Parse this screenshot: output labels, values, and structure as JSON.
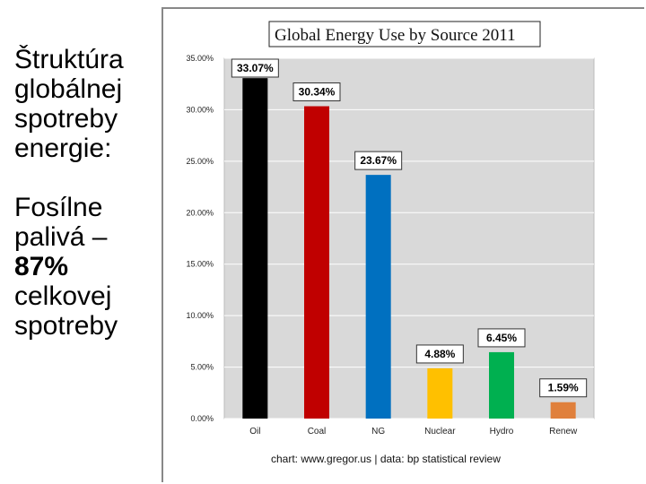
{
  "slide": {
    "lines_1": [
      "Štruktúra",
      "globálnej",
      "spotreby",
      "energie:"
    ],
    "lines_2": [
      "Fosílne",
      "palivá –"
    ],
    "highlight": "87%",
    "lines_3": [
      "celkovej",
      "spotreby"
    ]
  },
  "chart_data": {
    "type": "bar",
    "title": "Global Energy Use by Source 2011",
    "categories": [
      "Oil",
      "Coal",
      "NG",
      "Nuclear",
      "Hydro",
      "Renew"
    ],
    "values": [
      33.07,
      30.34,
      23.67,
      4.88,
      6.45,
      1.59
    ],
    "data_labels": [
      "33.07%",
      "30.34%",
      "23.67%",
      "4.88%",
      "6.45%",
      "1.59%"
    ],
    "colors": [
      "#000000",
      "#c00000",
      "#0070c0",
      "#ffc000",
      "#00b050",
      "#e0803c"
    ],
    "ylim": [
      0,
      35
    ],
    "yticks": [
      0,
      5,
      10,
      15,
      20,
      25,
      30,
      35
    ],
    "ytick_labels": [
      "0.00%",
      "5.00%",
      "10.00%",
      "15.00%",
      "20.00%",
      "25.00%",
      "30.00%",
      "35.00%"
    ],
    "grid": true,
    "plot_background": "#d9d9d9",
    "footer": "chart: www.gregor.us   |   data: bp statistical review",
    "xlabel": "",
    "ylabel": ""
  }
}
